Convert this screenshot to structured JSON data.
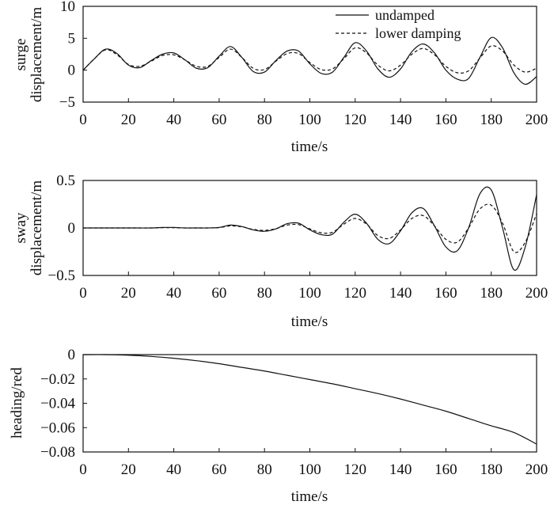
{
  "chart_data": [
    {
      "type": "line",
      "title": "",
      "xlabel": "time/s",
      "ylabel": "surge displacement/m",
      "ylabel_lines": [
        "surge",
        "displacement/m"
      ],
      "xlim": [
        0,
        200
      ],
      "ylim": [
        -5,
        10
      ],
      "xticks": [
        0,
        20,
        40,
        60,
        80,
        100,
        120,
        140,
        160,
        180,
        200
      ],
      "yticks": [
        -5,
        0,
        5,
        10
      ],
      "ytick_labels": [
        "−5",
        "0",
        "5",
        "10"
      ],
      "grid": false,
      "legend_position": "top-right",
      "x": [
        0,
        5,
        10,
        15,
        20,
        25,
        30,
        35,
        40,
        45,
        50,
        55,
        60,
        65,
        70,
        75,
        80,
        85,
        90,
        95,
        100,
        105,
        110,
        115,
        120,
        125,
        130,
        135,
        140,
        145,
        150,
        155,
        160,
        165,
        170,
        175,
        180,
        185,
        190,
        195,
        200
      ],
      "series": [
        {
          "name": "undamped",
          "style": "solid",
          "values": [
            0,
            1.8,
            3.3,
            2.6,
            0.8,
            0.4,
            1.5,
            2.5,
            2.7,
            1.6,
            0.3,
            0.4,
            2.2,
            3.7,
            2.0,
            -0.2,
            -0.3,
            1.5,
            3.0,
            3.0,
            1.0,
            -0.5,
            -0.3,
            2.0,
            4.3,
            3.0,
            0.2,
            -1.1,
            0.2,
            2.9,
            4.1,
            2.7,
            0.0,
            -1.4,
            -1.3,
            2.0,
            5.1,
            3.5,
            -0.4,
            -2.2,
            -1.0
          ]
        },
        {
          "name": "lower damping",
          "style": "dashed",
          "values": [
            0,
            1.8,
            3.2,
            2.4,
            0.9,
            0.6,
            1.4,
            2.3,
            2.4,
            1.6,
            0.6,
            0.6,
            2.0,
            3.3,
            2.0,
            0.3,
            0.1,
            1.4,
            2.6,
            2.6,
            1.2,
            0.1,
            0.2,
            1.8,
            3.5,
            2.7,
            0.8,
            -0.1,
            0.8,
            2.5,
            3.4,
            2.4,
            0.6,
            -0.4,
            -0.1,
            1.9,
            3.8,
            3.0,
            0.8,
            -0.3,
            0.3
          ]
        }
      ]
    },
    {
      "type": "line",
      "title": "",
      "xlabel": "time/s",
      "ylabel": "sway displacement/m",
      "ylabel_lines": [
        "sway",
        "displacement/m"
      ],
      "xlim": [
        0,
        200
      ],
      "ylim": [
        -0.5,
        0.5
      ],
      "xticks": [
        0,
        20,
        40,
        60,
        80,
        100,
        120,
        140,
        160,
        180,
        200
      ],
      "yticks": [
        -0.5,
        0,
        0.5
      ],
      "ytick_labels": [
        "−0.5",
        "0",
        "0.5"
      ],
      "grid": false,
      "x": [
        0,
        10,
        20,
        30,
        35,
        40,
        45,
        50,
        55,
        60,
        65,
        70,
        75,
        80,
        85,
        90,
        95,
        100,
        105,
        110,
        115,
        120,
        125,
        130,
        135,
        140,
        145,
        150,
        155,
        160,
        165,
        170,
        175,
        180,
        185,
        190,
        195,
        200
      ],
      "series": [
        {
          "name": "undamped",
          "style": "solid",
          "values": [
            0,
            0,
            0,
            0,
            0.005,
            0.005,
            0,
            0,
            0,
            0.005,
            0.03,
            0.015,
            -0.02,
            -0.035,
            -0.01,
            0.045,
            0.05,
            -0.02,
            -0.07,
            -0.065,
            0.06,
            0.145,
            0.05,
            -0.12,
            -0.165,
            -0.03,
            0.16,
            0.205,
            0.02,
            -0.2,
            -0.24,
            0.0,
            0.36,
            0.4,
            0.0,
            -0.44,
            -0.2,
            0.35
          ]
        },
        {
          "name": "lower damping",
          "style": "dashed",
          "values": [
            0,
            0,
            0,
            0,
            0.003,
            0.003,
            0,
            0,
            0,
            0.004,
            0.022,
            0.012,
            -0.015,
            -0.025,
            -0.008,
            0.03,
            0.035,
            -0.01,
            -0.05,
            -0.045,
            0.04,
            0.1,
            0.04,
            -0.08,
            -0.11,
            -0.02,
            0.1,
            0.13,
            0.02,
            -0.12,
            -0.15,
            0.0,
            0.2,
            0.24,
            0.05,
            -0.25,
            -0.15,
            0.15
          ]
        }
      ]
    },
    {
      "type": "line",
      "title": "",
      "xlabel": "time/s",
      "ylabel": "heading/red",
      "ylabel_lines": [
        "heading/red"
      ],
      "xlim": [
        0,
        200
      ],
      "ylim": [
        -0.08,
        0
      ],
      "xticks": [
        0,
        20,
        40,
        60,
        80,
        100,
        120,
        140,
        160,
        180,
        200
      ],
      "yticks": [
        -0.08,
        -0.06,
        -0.04,
        -0.02,
        0
      ],
      "ytick_labels": [
        "−0.08",
        "−0.06",
        "−0.04",
        "−0.02",
        "0"
      ],
      "grid": false,
      "x": [
        0,
        10,
        20,
        30,
        40,
        50,
        60,
        70,
        80,
        90,
        100,
        110,
        120,
        130,
        140,
        150,
        160,
        170,
        180,
        190,
        200
      ],
      "series": [
        {
          "name": "heading",
          "style": "solid",
          "values": [
            0,
            0,
            -0.0005,
            -0.0015,
            -0.003,
            -0.005,
            -0.0075,
            -0.0105,
            -0.0135,
            -0.017,
            -0.0205,
            -0.024,
            -0.028,
            -0.032,
            -0.0365,
            -0.0415,
            -0.0465,
            -0.0525,
            -0.0585,
            -0.064,
            -0.0735
          ]
        }
      ]
    }
  ]
}
